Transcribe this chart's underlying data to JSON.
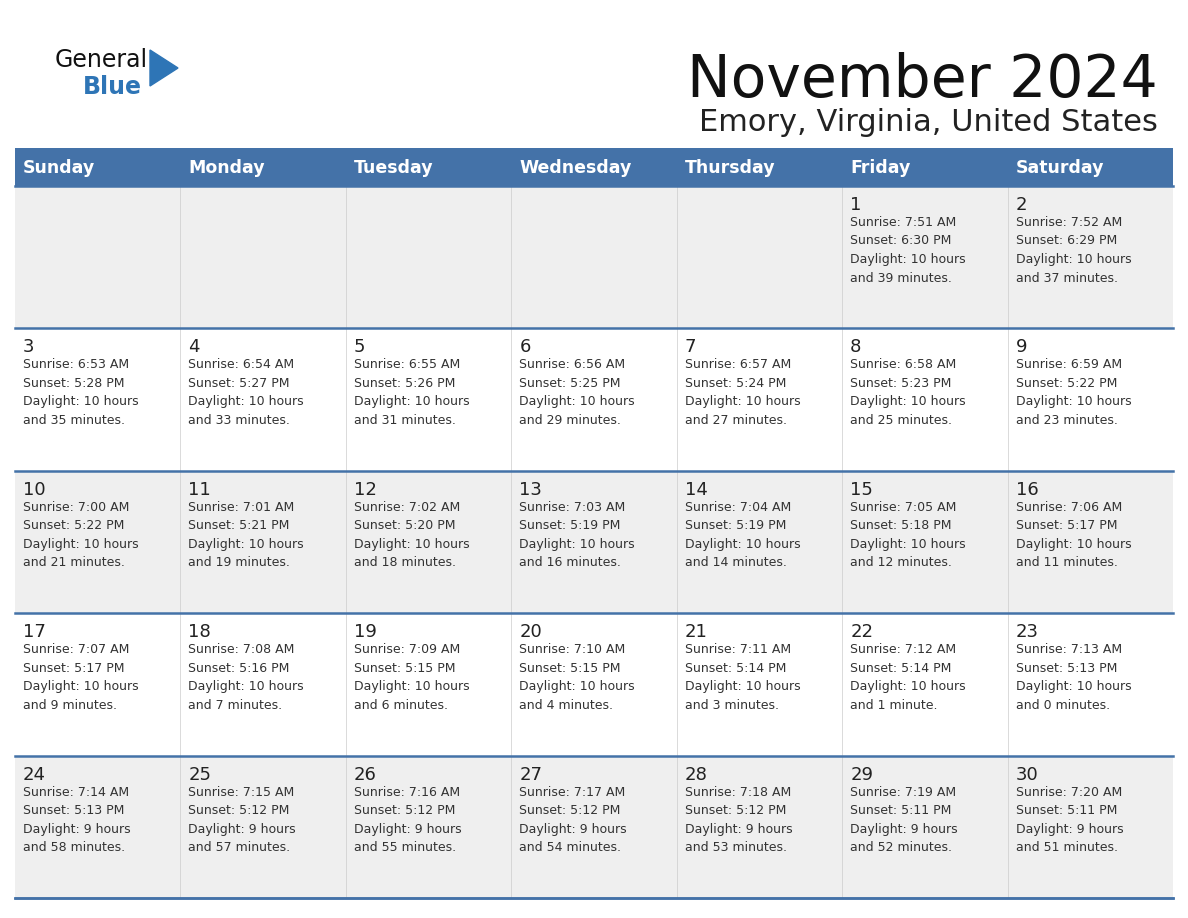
{
  "title": "November 2024",
  "subtitle": "Emory, Virginia, United States",
  "days_of_week": [
    "Sunday",
    "Monday",
    "Tuesday",
    "Wednesday",
    "Thursday",
    "Friday",
    "Saturday"
  ],
  "header_bg": "#4472a8",
  "header_text": "#ffffff",
  "cell_bg_light": "#efefef",
  "cell_bg_white": "#ffffff",
  "day_text_color": "#222222",
  "info_text_color": "#333333",
  "line_color": "#4472a8",
  "title_color": "#111111",
  "subtitle_color": "#222222",
  "logo_general_color": "#111111",
  "logo_blue_color": "#2e75b6",
  "weeks": [
    [
      {
        "day": null,
        "info": ""
      },
      {
        "day": null,
        "info": ""
      },
      {
        "day": null,
        "info": ""
      },
      {
        "day": null,
        "info": ""
      },
      {
        "day": null,
        "info": ""
      },
      {
        "day": 1,
        "info": "Sunrise: 7:51 AM\nSunset: 6:30 PM\nDaylight: 10 hours\nand 39 minutes."
      },
      {
        "day": 2,
        "info": "Sunrise: 7:52 AM\nSunset: 6:29 PM\nDaylight: 10 hours\nand 37 minutes."
      }
    ],
    [
      {
        "day": 3,
        "info": "Sunrise: 6:53 AM\nSunset: 5:28 PM\nDaylight: 10 hours\nand 35 minutes."
      },
      {
        "day": 4,
        "info": "Sunrise: 6:54 AM\nSunset: 5:27 PM\nDaylight: 10 hours\nand 33 minutes."
      },
      {
        "day": 5,
        "info": "Sunrise: 6:55 AM\nSunset: 5:26 PM\nDaylight: 10 hours\nand 31 minutes."
      },
      {
        "day": 6,
        "info": "Sunrise: 6:56 AM\nSunset: 5:25 PM\nDaylight: 10 hours\nand 29 minutes."
      },
      {
        "day": 7,
        "info": "Sunrise: 6:57 AM\nSunset: 5:24 PM\nDaylight: 10 hours\nand 27 minutes."
      },
      {
        "day": 8,
        "info": "Sunrise: 6:58 AM\nSunset: 5:23 PM\nDaylight: 10 hours\nand 25 minutes."
      },
      {
        "day": 9,
        "info": "Sunrise: 6:59 AM\nSunset: 5:22 PM\nDaylight: 10 hours\nand 23 minutes."
      }
    ],
    [
      {
        "day": 10,
        "info": "Sunrise: 7:00 AM\nSunset: 5:22 PM\nDaylight: 10 hours\nand 21 minutes."
      },
      {
        "day": 11,
        "info": "Sunrise: 7:01 AM\nSunset: 5:21 PM\nDaylight: 10 hours\nand 19 minutes."
      },
      {
        "day": 12,
        "info": "Sunrise: 7:02 AM\nSunset: 5:20 PM\nDaylight: 10 hours\nand 18 minutes."
      },
      {
        "day": 13,
        "info": "Sunrise: 7:03 AM\nSunset: 5:19 PM\nDaylight: 10 hours\nand 16 minutes."
      },
      {
        "day": 14,
        "info": "Sunrise: 7:04 AM\nSunset: 5:19 PM\nDaylight: 10 hours\nand 14 minutes."
      },
      {
        "day": 15,
        "info": "Sunrise: 7:05 AM\nSunset: 5:18 PM\nDaylight: 10 hours\nand 12 minutes."
      },
      {
        "day": 16,
        "info": "Sunrise: 7:06 AM\nSunset: 5:17 PM\nDaylight: 10 hours\nand 11 minutes."
      }
    ],
    [
      {
        "day": 17,
        "info": "Sunrise: 7:07 AM\nSunset: 5:17 PM\nDaylight: 10 hours\nand 9 minutes."
      },
      {
        "day": 18,
        "info": "Sunrise: 7:08 AM\nSunset: 5:16 PM\nDaylight: 10 hours\nand 7 minutes."
      },
      {
        "day": 19,
        "info": "Sunrise: 7:09 AM\nSunset: 5:15 PM\nDaylight: 10 hours\nand 6 minutes."
      },
      {
        "day": 20,
        "info": "Sunrise: 7:10 AM\nSunset: 5:15 PM\nDaylight: 10 hours\nand 4 minutes."
      },
      {
        "day": 21,
        "info": "Sunrise: 7:11 AM\nSunset: 5:14 PM\nDaylight: 10 hours\nand 3 minutes."
      },
      {
        "day": 22,
        "info": "Sunrise: 7:12 AM\nSunset: 5:14 PM\nDaylight: 10 hours\nand 1 minute."
      },
      {
        "day": 23,
        "info": "Sunrise: 7:13 AM\nSunset: 5:13 PM\nDaylight: 10 hours\nand 0 minutes."
      }
    ],
    [
      {
        "day": 24,
        "info": "Sunrise: 7:14 AM\nSunset: 5:13 PM\nDaylight: 9 hours\nand 58 minutes."
      },
      {
        "day": 25,
        "info": "Sunrise: 7:15 AM\nSunset: 5:12 PM\nDaylight: 9 hours\nand 57 minutes."
      },
      {
        "day": 26,
        "info": "Sunrise: 7:16 AM\nSunset: 5:12 PM\nDaylight: 9 hours\nand 55 minutes."
      },
      {
        "day": 27,
        "info": "Sunrise: 7:17 AM\nSunset: 5:12 PM\nDaylight: 9 hours\nand 54 minutes."
      },
      {
        "day": 28,
        "info": "Sunrise: 7:18 AM\nSunset: 5:12 PM\nDaylight: 9 hours\nand 53 minutes."
      },
      {
        "day": 29,
        "info": "Sunrise: 7:19 AM\nSunset: 5:11 PM\nDaylight: 9 hours\nand 52 minutes."
      },
      {
        "day": 30,
        "info": "Sunrise: 7:20 AM\nSunset: 5:11 PM\nDaylight: 9 hours\nand 51 minutes."
      }
    ]
  ]
}
